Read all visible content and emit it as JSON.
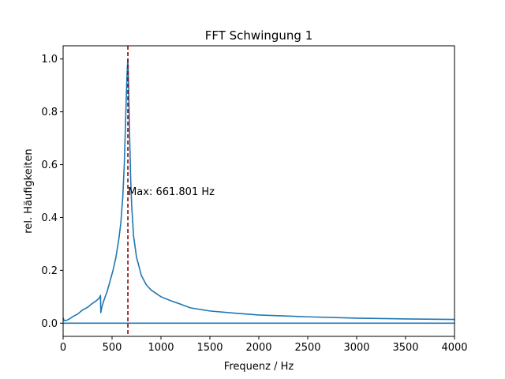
{
  "chart_data": {
    "type": "line",
    "title": "FFT Schwingung 1",
    "xlabel": "Frequenz / Hz",
    "ylabel": "rel. Häufigkeiten",
    "xlim": [
      0,
      4000
    ],
    "ylim": [
      -0.05,
      1.05
    ],
    "x_ticks": [
      0,
      500,
      1000,
      1500,
      2000,
      2500,
      3000,
      3500,
      4000
    ],
    "y_ticks": [
      0.0,
      0.2,
      0.4,
      0.6,
      0.8,
      1.0
    ],
    "x_tick_labels": [
      "0",
      "500",
      "1000",
      "1500",
      "2000",
      "2500",
      "3000",
      "3500",
      "4000"
    ],
    "y_tick_labels": [
      "0.0",
      "0.2",
      "0.4",
      "0.6",
      "0.8",
      "1.0"
    ],
    "grid": false,
    "series": [
      {
        "color": "#1f77b4",
        "x": [
          0,
          10,
          30,
          60,
          100,
          150,
          200,
          250,
          300,
          340,
          370,
          382,
          385,
          395,
          420,
          450,
          480,
          510,
          540,
          570,
          590,
          610,
          625,
          635,
          645,
          652,
          658,
          661.8,
          666,
          672,
          680,
          690,
          700,
          720,
          750,
          800,
          850,
          900,
          1000,
          1100,
          1200,
          1300,
          1400,
          1500,
          1750,
          2000,
          2500,
          3000,
          3500,
          4000
        ],
        "y": [
          0.02,
          0.01,
          0.01,
          0.015,
          0.025,
          0.035,
          0.05,
          0.06,
          0.075,
          0.085,
          0.095,
          0.105,
          0.04,
          0.06,
          0.09,
          0.12,
          0.16,
          0.2,
          0.25,
          0.32,
          0.38,
          0.48,
          0.6,
          0.72,
          0.85,
          0.93,
          0.98,
          1.0,
          0.95,
          0.85,
          0.7,
          0.55,
          0.45,
          0.33,
          0.25,
          0.18,
          0.145,
          0.125,
          0.1,
          0.085,
          0.072,
          0.058,
          0.052,
          0.046,
          0.038,
          0.031,
          0.024,
          0.019,
          0.016,
          0.014
        ]
      },
      {
        "color": "#1f77b4",
        "x": [
          0,
          4000
        ],
        "y": [
          0.0,
          0.0
        ]
      }
    ],
    "vline": {
      "x": 661.801,
      "color": "#8b0000",
      "style": "dashed"
    },
    "annotations": [
      {
        "text": "Max: 661.801 Hz",
        "x": 661.801,
        "y": 0.5
      }
    ]
  }
}
